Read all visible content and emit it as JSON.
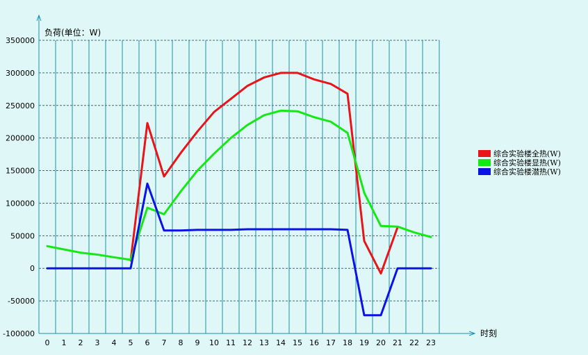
{
  "chart_data": {
    "type": "line",
    "title": "",
    "ylabel": "负荷(单位：W)",
    "xlabel": "时刻",
    "ylim": [
      -100000,
      350000
    ],
    "yticks": [
      -100000,
      -50000,
      0,
      50000,
      100000,
      150000,
      200000,
      250000,
      300000,
      350000
    ],
    "x": [
      0,
      1,
      2,
      3,
      4,
      5,
      6,
      7,
      8,
      9,
      10,
      11,
      12,
      13,
      14,
      15,
      16,
      17,
      18,
      19,
      20,
      21,
      22,
      23
    ],
    "grid": true,
    "legend": "right",
    "series": [
      {
        "name": "综合实验楼全热(W)",
        "color": "#e8141a",
        "x": [
          5,
          6,
          7,
          8,
          9,
          10,
          11,
          12,
          13,
          14,
          15,
          16,
          17,
          18,
          19,
          20,
          21
        ],
        "values": [
          12000,
          223000,
          141000,
          177000,
          210000,
          240000,
          260000,
          280000,
          293000,
          300000,
          300000,
          290000,
          283000,
          268000,
          42000,
          -8000,
          63000
        ]
      },
      {
        "name": "综合实验楼显热(W)",
        "color": "#15e815",
        "x": [
          0,
          1,
          2,
          3,
          4,
          5,
          6,
          7,
          8,
          9,
          10,
          11,
          12,
          13,
          14,
          15,
          16,
          17,
          18,
          19,
          20,
          21,
          22,
          23
        ],
        "values": [
          34000,
          29000,
          24000,
          21000,
          17000,
          13000,
          93000,
          83000,
          118000,
          150000,
          176000,
          200000,
          220000,
          235000,
          242000,
          241000,
          232000,
          225000,
          208000,
          116000,
          65000,
          64000,
          55000,
          48000
        ]
      },
      {
        "name": "综合实验楼潜热(W)",
        "color": "#0a12e6",
        "x": [
          0,
          1,
          2,
          3,
          4,
          5,
          6,
          7,
          8,
          9,
          10,
          11,
          12,
          13,
          14,
          15,
          16,
          17,
          18,
          19,
          20,
          21,
          22,
          23
        ],
        "values": [
          0,
          0,
          0,
          0,
          0,
          0,
          130000,
          58000,
          58000,
          59000,
          59000,
          59000,
          60000,
          60000,
          60000,
          60000,
          60000,
          60000,
          59000,
          -72000,
          -72000,
          0,
          0,
          0
        ]
      }
    ]
  }
}
